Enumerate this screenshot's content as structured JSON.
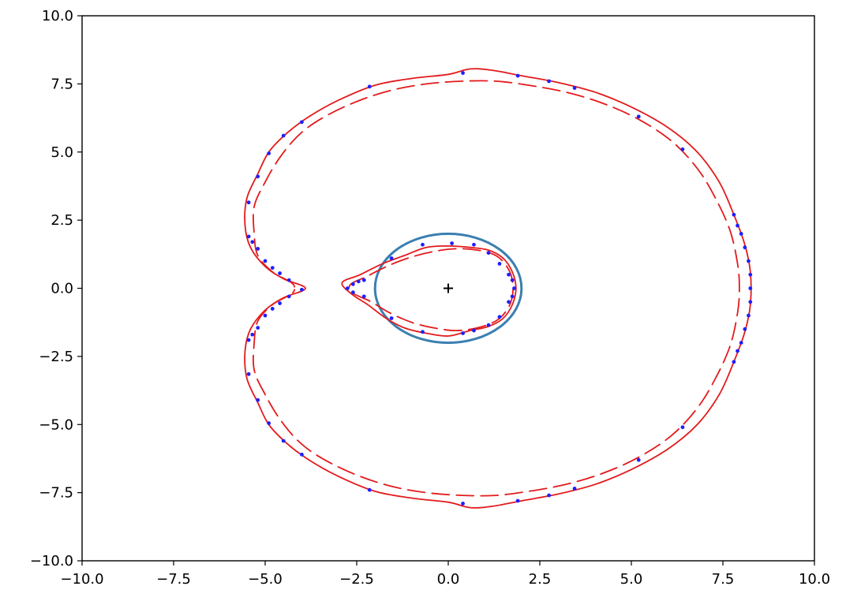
{
  "chart_data": {
    "type": "line",
    "title": "",
    "xlabel": "",
    "ylabel": "",
    "xlim": [
      -10,
      10
    ],
    "ylim": [
      -10,
      10
    ],
    "grid": false,
    "legend": "none",
    "x_ticks": [
      -10.0,
      -7.5,
      -5.0,
      -2.5,
      0.0,
      2.5,
      5.0,
      7.5,
      10.0
    ],
    "y_ticks": [
      -10.0,
      -7.5,
      -5.0,
      -2.5,
      0.0,
      2.5,
      5.0,
      7.5,
      10.0
    ],
    "x_tick_labels": [
      "−10.0",
      "−7.5",
      "−5.0",
      "−2.5",
      "0.0",
      "2.5",
      "5.0",
      "7.5",
      "10.0"
    ],
    "y_tick_labels": [
      "−10.0",
      "−7.5",
      "−5.0",
      "−2.5",
      "0.0",
      "2.5",
      "5.0",
      "7.5",
      "10.0"
    ],
    "series": [
      {
        "kind": "ellipse",
        "color": "#3b7fb0",
        "center": [
          0,
          0
        ],
        "radii": [
          2.0,
          2.0
        ]
      },
      {
        "kind": "marker",
        "color": "#000000",
        "points": [
          [
            0,
            0
          ]
        ]
      },
      {
        "kind": "outer-solid-curve",
        "color": "#e31a1c",
        "points": [
          [
            -3.9,
            0.0
          ],
          [
            -4.5,
            0.35
          ],
          [
            -5.0,
            0.8
          ],
          [
            -5.4,
            1.5
          ],
          [
            -5.55,
            2.3
          ],
          [
            -5.5,
            3.3
          ],
          [
            -5.2,
            4.2
          ],
          [
            -4.9,
            5.0
          ],
          [
            -4.4,
            5.7
          ],
          [
            -3.8,
            6.3
          ],
          [
            -3.0,
            6.9
          ],
          [
            -2.0,
            7.45
          ],
          [
            -1.0,
            7.7
          ],
          [
            0.0,
            7.85
          ],
          [
            0.6,
            8.05
          ],
          [
            1.2,
            8.0
          ],
          [
            2.0,
            7.8
          ],
          [
            3.0,
            7.55
          ],
          [
            4.0,
            7.2
          ],
          [
            5.0,
            6.65
          ],
          [
            6.0,
            5.9
          ],
          [
            6.8,
            5.0
          ],
          [
            7.4,
            3.9
          ],
          [
            7.8,
            2.7
          ],
          [
            8.1,
            1.6
          ],
          [
            8.25,
            0.6
          ],
          [
            8.25,
            -0.6
          ],
          [
            8.1,
            -1.6
          ],
          [
            7.8,
            -2.7
          ],
          [
            7.4,
            -3.9
          ],
          [
            6.8,
            -5.0
          ],
          [
            6.0,
            -5.9
          ],
          [
            5.0,
            -6.65
          ],
          [
            4.0,
            -7.2
          ],
          [
            3.0,
            -7.55
          ],
          [
            2.0,
            -7.8
          ],
          [
            1.2,
            -8.0
          ],
          [
            0.6,
            -8.05
          ],
          [
            0.0,
            -7.85
          ],
          [
            -1.0,
            -7.7
          ],
          [
            -2.0,
            -7.45
          ],
          [
            -3.0,
            -6.9
          ],
          [
            -3.8,
            -6.3
          ],
          [
            -4.4,
            -5.7
          ],
          [
            -4.9,
            -5.0
          ],
          [
            -5.2,
            -4.2
          ],
          [
            -5.5,
            -3.3
          ],
          [
            -5.55,
            -2.3
          ],
          [
            -5.4,
            -1.5
          ],
          [
            -5.0,
            -0.8
          ],
          [
            -4.5,
            -0.35
          ],
          [
            -3.9,
            0.0
          ]
        ]
      },
      {
        "kind": "outer-dashed-curve",
        "color": "#e31a1c",
        "points": [
          [
            -4.2,
            0.05
          ],
          [
            -4.8,
            0.6
          ],
          [
            -5.2,
            1.2
          ],
          [
            -5.3,
            2.0
          ],
          [
            -5.3,
            3.0
          ],
          [
            -5.0,
            3.9
          ],
          [
            -4.6,
            4.8
          ],
          [
            -4.1,
            5.6
          ],
          [
            -3.5,
            6.2
          ],
          [
            -2.6,
            6.8
          ],
          [
            -1.6,
            7.25
          ],
          [
            -0.6,
            7.5
          ],
          [
            0.4,
            7.6
          ],
          [
            1.3,
            7.6
          ],
          [
            2.2,
            7.45
          ],
          [
            3.2,
            7.2
          ],
          [
            4.2,
            6.8
          ],
          [
            5.2,
            6.2
          ],
          [
            6.1,
            5.4
          ],
          [
            6.8,
            4.4
          ],
          [
            7.3,
            3.3
          ],
          [
            7.7,
            2.1
          ],
          [
            7.9,
            0.9
          ],
          [
            7.95,
            0.0
          ],
          [
            7.9,
            -0.9
          ],
          [
            7.7,
            -2.1
          ],
          [
            7.3,
            -3.3
          ],
          [
            6.8,
            -4.4
          ],
          [
            6.1,
            -5.4
          ],
          [
            5.2,
            -6.2
          ],
          [
            4.2,
            -6.8
          ],
          [
            3.2,
            -7.2
          ],
          [
            2.2,
            -7.45
          ],
          [
            1.3,
            -7.6
          ],
          [
            0.4,
            -7.6
          ],
          [
            -0.6,
            -7.5
          ],
          [
            -1.6,
            -7.25
          ],
          [
            -2.6,
            -6.8
          ],
          [
            -3.5,
            -6.2
          ],
          [
            -4.1,
            -5.6
          ],
          [
            -4.6,
            -4.8
          ],
          [
            -5.0,
            -3.9
          ],
          [
            -5.3,
            -3.0
          ],
          [
            -5.3,
            -2.0
          ],
          [
            -5.2,
            -1.2
          ],
          [
            -4.8,
            -0.6
          ],
          [
            -4.2,
            -0.05
          ]
        ]
      },
      {
        "kind": "inner-solid-curve",
        "color": "#e31a1c",
        "points": [
          [
            -2.9,
            0.2
          ],
          [
            -2.4,
            0.5
          ],
          [
            -1.8,
            0.9
          ],
          [
            -1.2,
            1.2
          ],
          [
            -0.6,
            1.5
          ],
          [
            0.0,
            1.55
          ],
          [
            0.6,
            1.5
          ],
          [
            1.1,
            1.4
          ],
          [
            1.5,
            1.1
          ],
          [
            1.75,
            0.6
          ],
          [
            1.85,
            0.0
          ],
          [
            1.75,
            -0.6
          ],
          [
            1.5,
            -1.1
          ],
          [
            1.1,
            -1.4
          ],
          [
            0.6,
            -1.55
          ],
          [
            0.0,
            -1.75
          ],
          [
            -0.6,
            -1.65
          ],
          [
            -1.2,
            -1.45
          ],
          [
            -1.7,
            -1.1
          ],
          [
            -2.2,
            -0.6
          ],
          [
            -2.6,
            -0.25
          ],
          [
            -2.9,
            0.2
          ]
        ]
      },
      {
        "kind": "inner-dashed-curve",
        "color": "#e31a1c",
        "points": [
          [
            -2.7,
            0.05
          ],
          [
            -2.2,
            0.45
          ],
          [
            -1.6,
            0.85
          ],
          [
            -1.0,
            1.15
          ],
          [
            -0.4,
            1.35
          ],
          [
            0.2,
            1.45
          ],
          [
            0.8,
            1.4
          ],
          [
            1.3,
            1.2
          ],
          [
            1.6,
            0.8
          ],
          [
            1.75,
            0.3
          ],
          [
            1.75,
            -0.3
          ],
          [
            1.6,
            -0.8
          ],
          [
            1.3,
            -1.2
          ],
          [
            0.8,
            -1.45
          ],
          [
            0.2,
            -1.55
          ],
          [
            -0.4,
            -1.45
          ],
          [
            -1.0,
            -1.25
          ],
          [
            -1.6,
            -0.9
          ],
          [
            -2.1,
            -0.5
          ],
          [
            -2.7,
            -0.05
          ]
        ]
      },
      {
        "kind": "scatter",
        "color": "#1f1fff",
        "points": [
          [
            0.4,
            7.9
          ],
          [
            1.9,
            7.8
          ],
          [
            2.75,
            7.6
          ],
          [
            3.45,
            7.35
          ],
          [
            5.2,
            6.3
          ],
          [
            6.4,
            5.1
          ],
          [
            7.8,
            2.7
          ],
          [
            7.9,
            2.3
          ],
          [
            8.0,
            2.0
          ],
          [
            8.1,
            1.5
          ],
          [
            8.2,
            1.0
          ],
          [
            8.25,
            0.5
          ],
          [
            8.25,
            0.0
          ],
          [
            8.25,
            -0.5
          ],
          [
            8.2,
            -1.0
          ],
          [
            8.1,
            -1.5
          ],
          [
            8.0,
            -2.0
          ],
          [
            7.9,
            -2.3
          ],
          [
            7.8,
            -2.7
          ],
          [
            6.4,
            -5.1
          ],
          [
            5.2,
            -6.3
          ],
          [
            3.45,
            -7.35
          ],
          [
            2.75,
            -7.6
          ],
          [
            1.9,
            -7.8
          ],
          [
            0.4,
            -7.9
          ],
          [
            -2.15,
            7.4
          ],
          [
            -2.15,
            -7.4
          ],
          [
            -4.0,
            6.1
          ],
          [
            -4.5,
            5.6
          ],
          [
            -4.9,
            4.95
          ],
          [
            -5.2,
            4.1
          ],
          [
            -5.45,
            3.15
          ],
          [
            -5.45,
            1.9
          ],
          [
            -5.35,
            1.7
          ],
          [
            -5.2,
            1.45
          ],
          [
            -5.0,
            1.0
          ],
          [
            -4.8,
            0.75
          ],
          [
            -4.6,
            0.55
          ],
          [
            -4.35,
            0.3
          ],
          [
            -4.0,
            -0.05
          ],
          [
            -4.35,
            -0.3
          ],
          [
            -4.6,
            -0.55
          ],
          [
            -4.8,
            -0.75
          ],
          [
            -5.0,
            -1.0
          ],
          [
            -5.2,
            -1.45
          ],
          [
            -5.35,
            -1.7
          ],
          [
            -5.45,
            -1.9
          ],
          [
            -5.45,
            -3.15
          ],
          [
            -5.2,
            -4.1
          ],
          [
            -4.9,
            -4.95
          ],
          [
            -4.5,
            -5.6
          ],
          [
            -4.0,
            -6.1
          ],
          [
            -2.75,
            0.0
          ],
          [
            -2.6,
            0.15
          ],
          [
            -2.45,
            0.25
          ],
          [
            -2.3,
            0.3
          ],
          [
            -2.6,
            -0.15
          ],
          [
            -2.3,
            -0.3
          ],
          [
            -1.55,
            1.1
          ],
          [
            -0.7,
            1.6
          ],
          [
            0.1,
            1.65
          ],
          [
            0.7,
            1.6
          ],
          [
            1.1,
            1.3
          ],
          [
            1.4,
            0.9
          ],
          [
            1.65,
            0.5
          ],
          [
            1.75,
            0.3
          ],
          [
            1.8,
            0.0
          ],
          [
            1.75,
            -0.3
          ],
          [
            1.65,
            -0.5
          ],
          [
            1.4,
            -1.05
          ],
          [
            1.1,
            -1.35
          ],
          [
            0.7,
            -1.55
          ],
          [
            0.4,
            -1.65
          ],
          [
            -0.7,
            -1.6
          ],
          [
            -1.55,
            -1.1
          ]
        ]
      }
    ]
  }
}
